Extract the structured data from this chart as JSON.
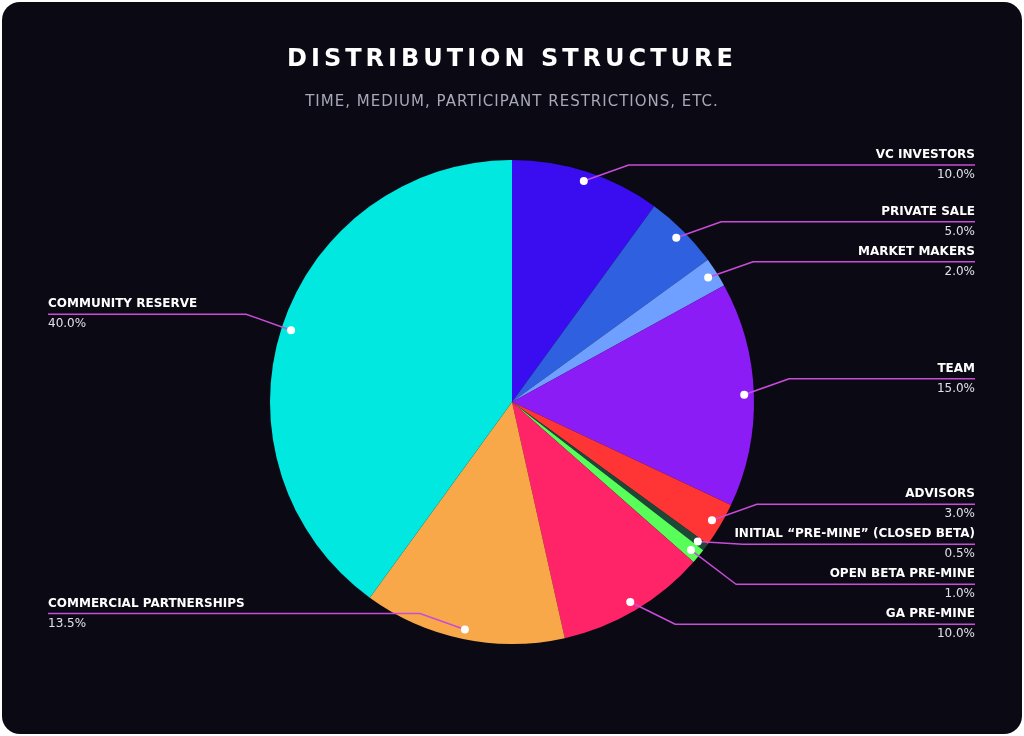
{
  "chart_data": {
    "type": "pie",
    "title": "DISTRIBUTION STRUCTURE",
    "subtitle": "TIME, MEDIUM, PARTICIPANT RESTRICTIONS, ETC.",
    "categories": [
      "VC INVESTORS",
      "PRIVATE SALE",
      "MARKET MAKERS",
      "TEAM",
      "ADVISORS",
      "INITIAL “PRE-MINE” (CLOSED BETA)",
      "OPEN BETA PRE-MINE",
      "GA PRE-MINE",
      "COMMERCIAL PARTNERSHIPS",
      "COMMUNITY RESERVE"
    ],
    "values": [
      10,
      5,
      2,
      15,
      3,
      0.5,
      1,
      10,
      13.5,
      40
    ],
    "value_labels": [
      "10.0%",
      "5.0%",
      "2.0%",
      "15.0%",
      "3.0%",
      "0.5%",
      "1.0%",
      "10.0%",
      "13.5%",
      "40.0%"
    ],
    "colors": [
      "#3a0cf0",
      "#2f60e0",
      "#70a0ff",
      "#8c1cf6",
      "#ff3434",
      "#1c4838",
      "#58ff58",
      "#ff2468",
      "#f8a848",
      "#00e8e0"
    ],
    "legend": false
  }
}
